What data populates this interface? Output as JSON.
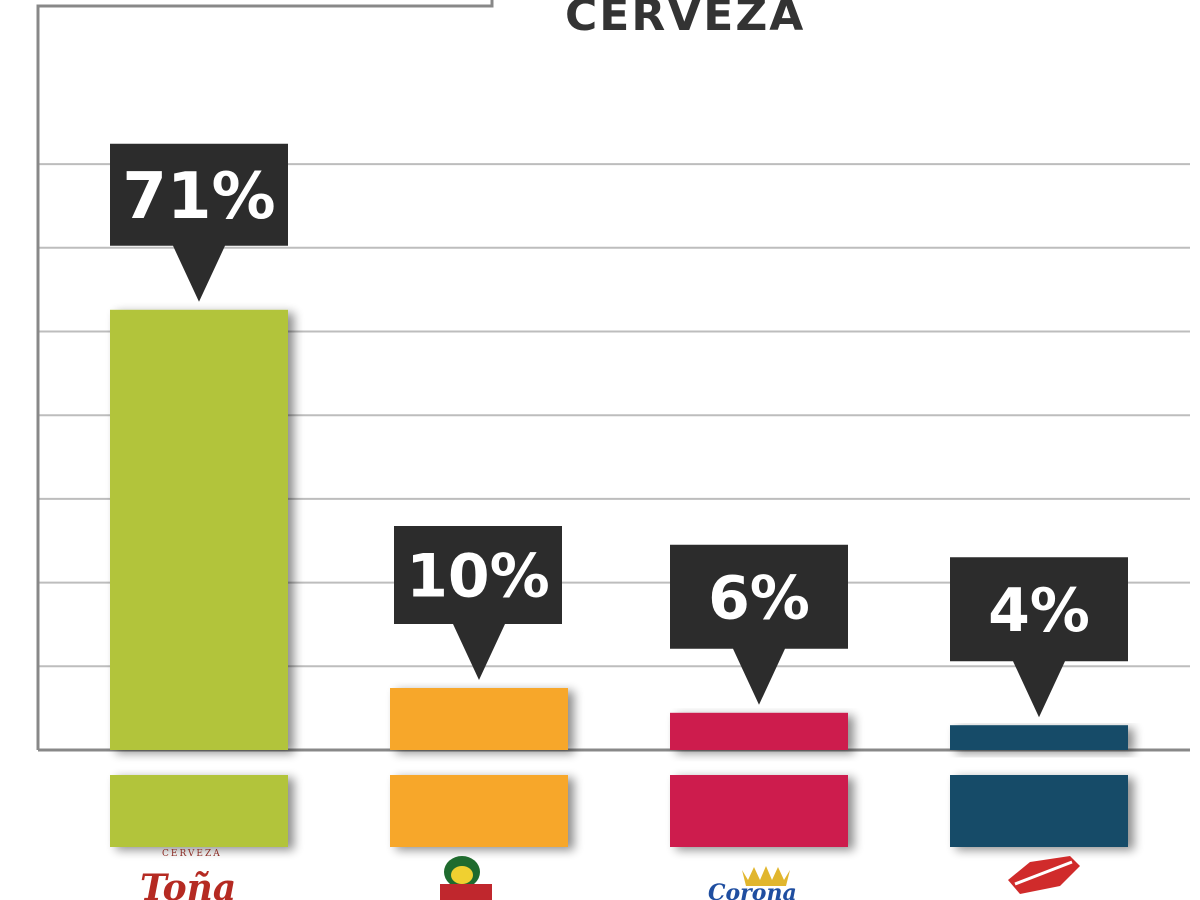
{
  "chart_data": {
    "type": "bar",
    "title": "CERVEZA",
    "categories": [
      "Toña",
      "",
      "Corona",
      ""
    ],
    "series": [
      {
        "values": [
          71,
          10,
          6,
          4
        ]
      }
    ],
    "data_labels": [
      "71%",
      "10%",
      "6%",
      "4%"
    ],
    "ylim": [
      0,
      80
    ],
    "grid": true,
    "legend": "none",
    "colors": [
      "#b2c43a",
      "#f7a72b",
      "#cd1f4e",
      "#194b68"
    ]
  },
  "logos": {
    "tona": {
      "small": "CERVEZA",
      "name": "Toña",
      "color": "#b52a22",
      "icon": "tona-logo-icon"
    },
    "second": {
      "icon": "victoria-logo-icon",
      "color": "#c0272d"
    },
    "corona": {
      "name": "Corona",
      "color": "#1f4ea0",
      "icon": "corona-crown-icon"
    },
    "fourth": {
      "icon": "brand-logo-icon",
      "color": "#d02b2b"
    }
  },
  "colors": {
    "axis": "#888888",
    "grid": "#bdbdbd",
    "callout": "#2c2c2c",
    "title": "#333333"
  }
}
